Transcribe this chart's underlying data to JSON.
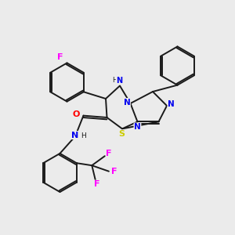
{
  "background_color": "#ebebeb",
  "bond_color": "#1a1a1a",
  "atom_colors": {
    "F": "#ff00ff",
    "N": "#0000ee",
    "O": "#ff0000",
    "S": "#cccc00",
    "H": "#1a1a1a",
    "C": "#1a1a1a"
  }
}
